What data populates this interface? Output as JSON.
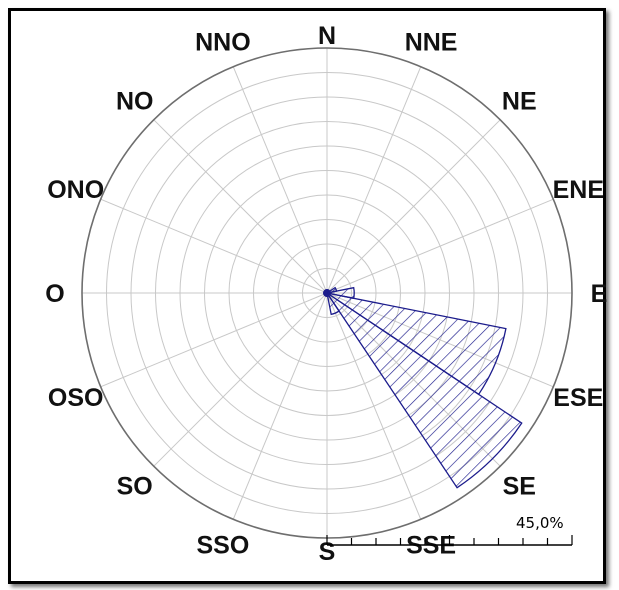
{
  "chart_data": {
    "type": "polar-bar",
    "directions": [
      "N",
      "NNE",
      "NE",
      "ENE",
      "E",
      "ESE",
      "SE",
      "SSE",
      "S",
      "SSO",
      "SO",
      "OSO",
      "O",
      "ONO",
      "NO",
      "NNO"
    ],
    "values": [
      0.6,
      0.6,
      0.6,
      1.8,
      5.0,
      33.5,
      43.0,
      4.0,
      0.6,
      0.6,
      0.6,
      0.6,
      0.6,
      0.6,
      0.6,
      0.6
    ],
    "scale_label": "45,0%",
    "r_max": 45,
    "ring_count": 10,
    "grid": true,
    "colors": {
      "bars": "#1c1c8c",
      "grid": "#c8c8c8",
      "text": "#111111"
    }
  }
}
